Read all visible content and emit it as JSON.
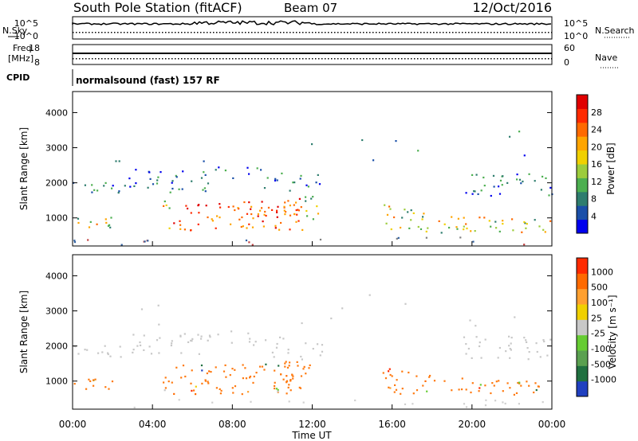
{
  "header": {
    "station": "South Pole Station (fitACF)",
    "beam": "Beam 07",
    "date": "12/Oct/2016"
  },
  "side_labels": {
    "nsky": "N.Sky",
    "nsearch": "N.Search",
    "freq": "Freq.",
    "freq_unit": "[MHz]",
    "nave": "Nave",
    "cpid": "CPID"
  },
  "cpid_text": "normalsound (fast) 157 RF",
  "noise_panel": {
    "left_ticks": [
      "10^5",
      "10^0"
    ],
    "right_ticks": [
      "10^5",
      "10^0"
    ]
  },
  "freq_panel": {
    "left_ticks": [
      "18",
      "8"
    ],
    "right_ticks": [
      "60",
      "0"
    ]
  },
  "chart_data": [
    {
      "type": "heatmap",
      "name": "power",
      "ylabel": "Slant Range [km]",
      "ylim": [
        200,
        4600
      ],
      "yticks": [
        "4000",
        "3000",
        "2000",
        "1000"
      ],
      "colorbar_label": "Power [dB]",
      "colorbar_ticks": [
        "28",
        "24",
        "20",
        "16",
        "12",
        "8",
        "4"
      ],
      "colors": [
        "#0000ee",
        "#1a4fa8",
        "#2e7d6e",
        "#4caf50",
        "#9ccc3c",
        "#f0d000",
        "#ffa500",
        "#ff6a00",
        "#ff2a00",
        "#e00000"
      ]
    },
    {
      "type": "heatmap",
      "name": "velocity",
      "ylabel": "Slant Range [km]",
      "ylim": [
        200,
        4600
      ],
      "yticks": [
        "4000",
        "3000",
        "2000",
        "1000"
      ],
      "colorbar_label": "Velocity [m s⁻¹]",
      "colorbar_ticks": [
        "1000",
        "500",
        "100",
        "25",
        "-25",
        "-100",
        "-500",
        "-1000"
      ],
      "colors": [
        "#2040c0",
        "#207040",
        "#5aa050",
        "#66cc33",
        "#c8c8c8",
        "#f0d000",
        "#ffa030",
        "#ff6a00",
        "#ff2a00"
      ]
    }
  ],
  "x_axis": {
    "label": "Time UT",
    "ticks": [
      "00:00",
      "04:00",
      "08:00",
      "12:00",
      "16:00",
      "20:00",
      "00:00"
    ]
  }
}
